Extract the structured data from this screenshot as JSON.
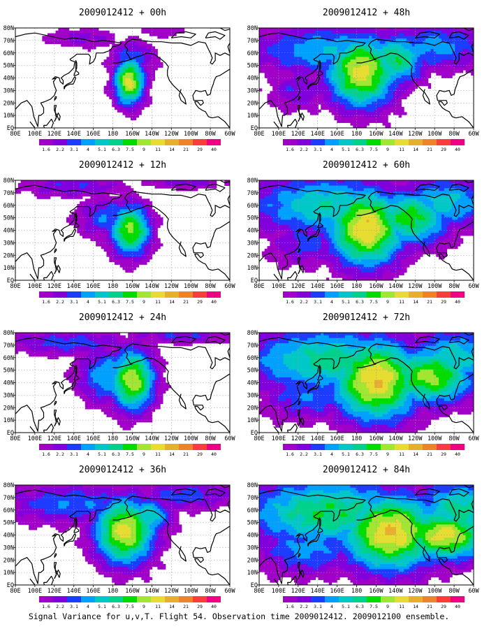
{
  "figure": {
    "caption": "Signal Variance for u,v,T. Flight 54. Observation time 2009012412. 2009012100 ensemble.",
    "base_time": "2009012412"
  },
  "colorbar": {
    "labels": [
      "1.6",
      "2.2",
      "3.1",
      "4",
      "5.1",
      "6.3",
      "7.5",
      "9",
      "11",
      "14",
      "21",
      "29",
      "40"
    ],
    "colors": [
      "#a000c8",
      "#8200dc",
      "#1e3cff",
      "#00a0ff",
      "#00c8c8",
      "#00d28c",
      "#00dc00",
      "#a0e632",
      "#e6dc32",
      "#e6af2d",
      "#f08228",
      "#fa3c3c",
      "#f00082"
    ]
  },
  "axes": {
    "x_ticks": [
      "80E",
      "100E",
      "120E",
      "140E",
      "160E",
      "180",
      "160W",
      "140W",
      "120W",
      "100W",
      "80W",
      "60W"
    ],
    "y_ticks": [
      "EQ",
      "10N",
      "20N",
      "30N",
      "40N",
      "50N",
      "60N",
      "70N",
      "80N"
    ],
    "x_range": [
      80,
      300
    ],
    "y_range": [
      0,
      80
    ]
  },
  "chart_data": [
    {
      "type": "heatmap",
      "title": "2009012412 + 00h",
      "lead": "00h",
      "max_level": 10,
      "blobs": [
        {
          "lon": 197,
          "lat": 37,
          "rx": 15,
          "ry": 18,
          "amp": 9.5
        },
        {
          "lon": 200,
          "lat": 55,
          "rx": 22,
          "ry": 14,
          "amp": 4
        },
        {
          "lon": 150,
          "lat": 72,
          "rx": 35,
          "ry": 8,
          "amp": 2.5
        },
        {
          "lon": 230,
          "lat": 78,
          "rx": 25,
          "ry": 6,
          "amp": 2
        }
      ]
    },
    {
      "type": "heatmap",
      "title": "2009012412 + 12h",
      "lead": "12h",
      "max_level": 9,
      "blobs": [
        {
          "lon": 198,
          "lat": 40,
          "rx": 20,
          "ry": 20,
          "amp": 8.5
        },
        {
          "lon": 175,
          "lat": 50,
          "rx": 30,
          "ry": 16,
          "amp": 4
        },
        {
          "lon": 140,
          "lat": 75,
          "rx": 55,
          "ry": 9,
          "amp": 3
        },
        {
          "lon": 255,
          "lat": 78,
          "rx": 40,
          "ry": 6,
          "amp": 2.5
        }
      ]
    },
    {
      "type": "heatmap",
      "title": "2009012412 + 24h",
      "lead": "24h",
      "max_level": 10,
      "blobs": [
        {
          "lon": 200,
          "lat": 42,
          "rx": 22,
          "ry": 24,
          "amp": 9
        },
        {
          "lon": 175,
          "lat": 45,
          "rx": 30,
          "ry": 22,
          "amp": 5
        },
        {
          "lon": 135,
          "lat": 72,
          "rx": 65,
          "ry": 10,
          "amp": 3.5
        },
        {
          "lon": 250,
          "lat": 78,
          "rx": 55,
          "ry": 7,
          "amp": 3
        }
      ]
    },
    {
      "type": "heatmap",
      "title": "2009012412 + 36h",
      "lead": "36h",
      "max_level": 10,
      "blobs": [
        {
          "lon": 192,
          "lat": 43,
          "rx": 30,
          "ry": 26,
          "amp": 9.5
        },
        {
          "lon": 215,
          "lat": 55,
          "rx": 25,
          "ry": 15,
          "amp": 6
        },
        {
          "lon": 140,
          "lat": 65,
          "rx": 70,
          "ry": 16,
          "amp": 4
        },
        {
          "lon": 255,
          "lat": 72,
          "rx": 55,
          "ry": 12,
          "amp": 3.5
        }
      ]
    },
    {
      "type": "heatmap",
      "title": "2009012412 + 48h",
      "lead": "48h",
      "max_level": 10,
      "blobs": [
        {
          "lon": 185,
          "lat": 45,
          "rx": 35,
          "ry": 28,
          "amp": 9.5
        },
        {
          "lon": 220,
          "lat": 55,
          "rx": 30,
          "ry": 20,
          "amp": 7
        },
        {
          "lon": 150,
          "lat": 62,
          "rx": 75,
          "ry": 20,
          "amp": 5
        },
        {
          "lon": 260,
          "lat": 65,
          "rx": 55,
          "ry": 18,
          "amp": 4.5
        },
        {
          "lon": 120,
          "lat": 30,
          "rx": 30,
          "ry": 16,
          "amp": 3
        }
      ]
    },
    {
      "type": "heatmap",
      "title": "2009012412 + 60h",
      "lead": "60h",
      "max_level": 11,
      "blobs": [
        {
          "lon": 190,
          "lat": 42,
          "rx": 38,
          "ry": 30,
          "amp": 10
        },
        {
          "lon": 235,
          "lat": 50,
          "rx": 40,
          "ry": 22,
          "amp": 7.5
        },
        {
          "lon": 150,
          "lat": 60,
          "rx": 80,
          "ry": 24,
          "amp": 6
        },
        {
          "lon": 270,
          "lat": 62,
          "rx": 50,
          "ry": 20,
          "amp": 5.5
        },
        {
          "lon": 130,
          "lat": 30,
          "rx": 40,
          "ry": 18,
          "amp": 3.5
        }
      ]
    },
    {
      "type": "heatmap",
      "title": "2009012412 + 72h",
      "lead": "72h",
      "max_level": 11,
      "blobs": [
        {
          "lon": 200,
          "lat": 42,
          "rx": 45,
          "ry": 32,
          "amp": 10
        },
        {
          "lon": 255,
          "lat": 45,
          "rx": 45,
          "ry": 22,
          "amp": 8.5
        },
        {
          "lon": 150,
          "lat": 58,
          "rx": 85,
          "ry": 26,
          "amp": 6.5
        },
        {
          "lon": 280,
          "lat": 60,
          "rx": 45,
          "ry": 22,
          "amp": 6
        },
        {
          "lon": 130,
          "lat": 30,
          "rx": 45,
          "ry": 20,
          "amp": 4
        }
      ]
    },
    {
      "type": "heatmap",
      "title": "2009012412 + 84h",
      "lead": "84h",
      "max_level": 11,
      "blobs": [
        {
          "lon": 215,
          "lat": 42,
          "rx": 50,
          "ry": 30,
          "amp": 10
        },
        {
          "lon": 270,
          "lat": 40,
          "rx": 45,
          "ry": 20,
          "amp": 9.5
        },
        {
          "lon": 150,
          "lat": 58,
          "rx": 85,
          "ry": 28,
          "amp": 7
        },
        {
          "lon": 285,
          "lat": 60,
          "rx": 45,
          "ry": 24,
          "amp": 6.5
        },
        {
          "lon": 130,
          "lat": 30,
          "rx": 50,
          "ry": 22,
          "amp": 4.5
        }
      ]
    }
  ]
}
